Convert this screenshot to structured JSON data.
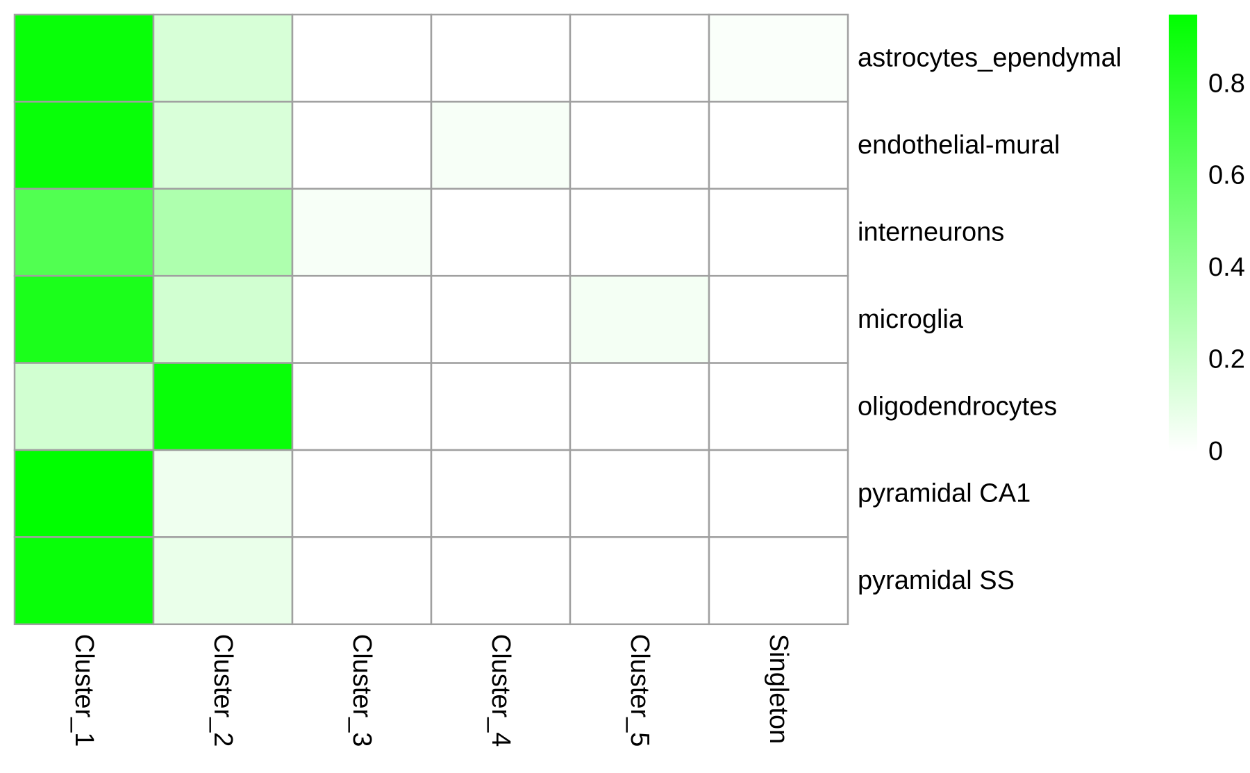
{
  "chart_data": {
    "type": "heatmap",
    "rows": [
      "astrocytes_ependymal",
      "endothelial-mural",
      "interneurons",
      "microglia",
      "oligodendrocytes",
      "pyramidal CA1",
      "pyramidal SS"
    ],
    "columns": [
      "Cluster_1",
      "Cluster_2",
      "Cluster_3",
      "Cluster_4",
      "Cluster_5",
      "Singleton"
    ],
    "values": [
      [
        0.92,
        0.15,
        0.0,
        0.0,
        0.0,
        0.02
      ],
      [
        0.92,
        0.14,
        0.0,
        0.03,
        0.0,
        0.0
      ],
      [
        0.65,
        0.3,
        0.03,
        0.0,
        0.0,
        0.0
      ],
      [
        0.85,
        0.17,
        0.0,
        0.0,
        0.04,
        0.0
      ],
      [
        0.17,
        0.92,
        0.0,
        0.0,
        0.0,
        0.0
      ],
      [
        0.95,
        0.06,
        0.0,
        0.0,
        0.0,
        0.0
      ],
      [
        0.92,
        0.08,
        0.0,
        0.0,
        0.0,
        0.0
      ]
    ],
    "color_scale": {
      "min": 0,
      "max": 0.95,
      "low_color": "#ffffff",
      "high_color": "#00ff00",
      "ticks": [
        0,
        0.2,
        0.4,
        0.6,
        0.8
      ],
      "tick_labels": [
        "0",
        "0.2",
        "0.4",
        "0.6",
        "0.8"
      ]
    },
    "grid": true,
    "grid_color": "#a0a0a0",
    "legend_position": "right"
  }
}
